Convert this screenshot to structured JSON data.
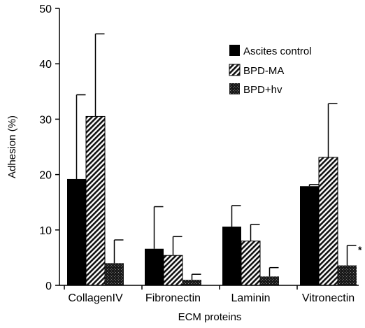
{
  "chart_data": {
    "type": "bar",
    "title": "",
    "xlabel": "ECM proteins",
    "ylabel": "Adhesion (%)",
    "ylim": [
      0,
      50
    ],
    "yticks": [
      "0",
      "10",
      "20",
      "30",
      "40",
      "50"
    ],
    "categories": [
      "CollagenIV",
      "Fibronectin",
      "Laminin",
      "Vitronectin"
    ],
    "grid": false,
    "legend_position": "top-right",
    "series": [
      {
        "name": "Ascites control",
        "fill": "solid-black",
        "values": [
          19.2,
          6.6,
          10.6,
          17.9
        ],
        "errors": [
          15.2,
          7.6,
          3.8,
          0.3
        ]
      },
      {
        "name": "BPD-MA",
        "fill": "diagonal-hatch",
        "values": [
          30.5,
          5.4,
          8.0,
          23.1
        ],
        "errors": [
          14.9,
          3.4,
          3.0,
          9.7
        ]
      },
      {
        "name": "BPD+hv",
        "fill": "dark-stipple",
        "values": [
          4.0,
          1.0,
          1.6,
          3.6
        ],
        "errors": [
          4.2,
          1.0,
          1.6,
          3.6
        ]
      }
    ],
    "annotations": [
      {
        "text": "*",
        "category": "Vitronectin",
        "series": "BPD+hv"
      }
    ]
  }
}
